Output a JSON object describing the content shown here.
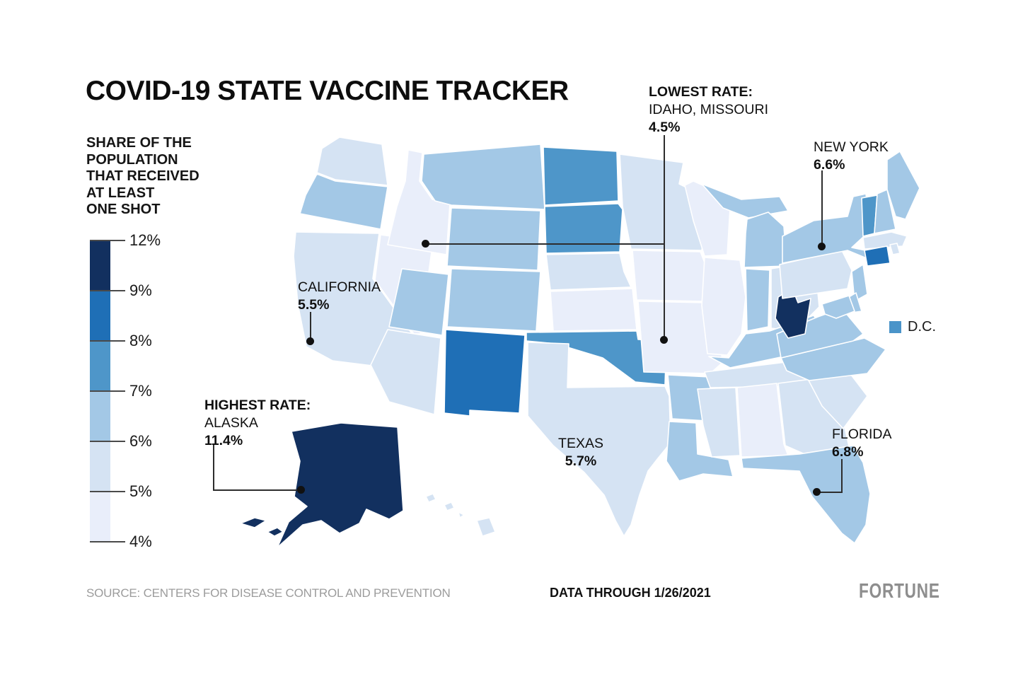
{
  "title": "COVID-19 STATE VACCINE TRACKER",
  "subtitle_lines": [
    "SHARE OF THE",
    "POPULATION",
    "THAT RECEIVED",
    "AT LEAST",
    "ONE SHOT"
  ],
  "legend": {
    "tick_labels": [
      "12%",
      "9%",
      "8%",
      "7%",
      "6%",
      "5%",
      "4%"
    ],
    "bands_top_to_bottom": [
      "9-12",
      "8-9",
      "7-8",
      "6-7",
      "5-6",
      "4-5"
    ]
  },
  "dc_legend": {
    "label": "D.C.",
    "color": "#4a94c9"
  },
  "annotations": [
    {
      "id": "lowest",
      "lines": [
        {
          "text": "LOWEST RATE:",
          "bold": true
        },
        {
          "text": "IDAHO, MISSOURI",
          "bold": false
        },
        {
          "text": "4.5%",
          "bold": true
        }
      ]
    },
    {
      "id": "newyork",
      "lines": [
        {
          "text": "NEW YORK",
          "bold": false
        },
        {
          "text": "6.6%",
          "bold": true
        }
      ]
    },
    {
      "id": "california",
      "lines": [
        {
          "text": "CALIFORNIA",
          "bold": false
        },
        {
          "text": "5.5%",
          "bold": true
        }
      ]
    },
    {
      "id": "highest",
      "lines": [
        {
          "text": "HIGHEST RATE:",
          "bold": true
        },
        {
          "text": "ALASKA",
          "bold": false
        },
        {
          "text": "11.4%",
          "bold": true
        }
      ]
    },
    {
      "id": "texas",
      "lines": [
        {
          "text": "TEXAS",
          "bold": false
        },
        {
          "text": "5.7%",
          "bold": true
        }
      ]
    },
    {
      "id": "florida",
      "lines": [
        {
          "text": "FLORIDA",
          "bold": false
        },
        {
          "text": "6.8%",
          "bold": true
        }
      ]
    }
  ],
  "footer": {
    "source": "SOURCE: CENTERS FOR DISEASE CONTROL AND PREVENTION",
    "data_through": "DATA THROUGH 1/26/2021",
    "brand": "FORTUNE"
  },
  "map": {
    "band_colors": {
      "9-12": "#12305f",
      "8-9": "#1f6fb6",
      "7-8": "#4e96c9",
      "6-7": "#a3c8e6",
      "5-6": "#d5e3f3",
      "4-5": "#e9eefa"
    }
  },
  "chart_data": {
    "type": "choropleth",
    "title": "COVID-19 STATE VACCINE TRACKER",
    "metric": "Share of the population that received at least one shot",
    "unit": "percent",
    "scale_ticks_percent": [
      12,
      9,
      8,
      7,
      6,
      5,
      4
    ],
    "callouts": [
      {
        "label": "Lowest rate",
        "states": [
          "Idaho",
          "Missouri"
        ],
        "value": 4.5
      },
      {
        "label": "Highest rate",
        "states": [
          "Alaska"
        ],
        "value": 11.4
      },
      {
        "label": "New York",
        "states": [
          "New York"
        ],
        "value": 6.6
      },
      {
        "label": "California",
        "states": [
          "California"
        ],
        "value": 5.5
      },
      {
        "label": "Texas",
        "states": [
          "Texas"
        ],
        "value": 5.7
      },
      {
        "label": "Florida",
        "states": [
          "Florida"
        ],
        "value": 6.8
      }
    ],
    "source": "Centers for Disease Control and Prevention",
    "data_through": "1/26/2021",
    "state_bands": {
      "WA": "5-6",
      "OR": "6-7",
      "CA": "5-6",
      "NV": "4-5",
      "ID": "4-5",
      "MT": "6-7",
      "WY": "6-7",
      "UT": "6-7",
      "CO": "6-7",
      "AZ": "5-6",
      "NM": "8-9",
      "ND": "7-8",
      "SD": "7-8",
      "NE": "5-6",
      "KS": "4-5",
      "OK": "7-8",
      "TX": "5-6",
      "MN": "5-6",
      "IA": "4-5",
      "MO": "4-5",
      "AR": "6-7",
      "LA": "6-7",
      "WI": "4-5",
      "IL": "4-5",
      "MI": "6-7",
      "IN": "6-7",
      "OH": "5-6",
      "KY": "6-7",
      "TN": "5-6",
      "MS": "5-6",
      "AL": "4-5",
      "GA": "5-6",
      "FL": "6-7",
      "SC": "5-6",
      "NC": "6-7",
      "VA": "6-7",
      "WV": "9-12",
      "PA": "5-6",
      "NY": "6-7",
      "NJ": "6-7",
      "CT": "8-9",
      "RI": "5-6",
      "MA": "5-6",
      "VT": "7-8",
      "NH": "6-7",
      "ME": "6-7",
      "MD": "6-7",
      "DE": "6-7",
      "AK": "9-12",
      "HI": "5-6",
      "DC": "7-8"
    }
  }
}
